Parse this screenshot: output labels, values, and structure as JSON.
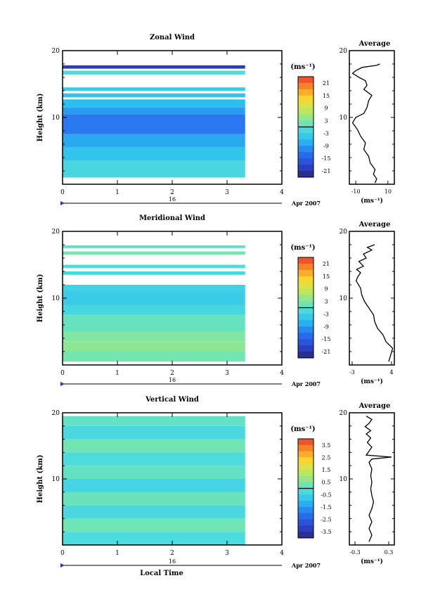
{
  "chart_data": [
    {
      "type": "heatmap",
      "title": "Zonal Wind",
      "ylabel": "Height (km)",
      "xlim": [
        0,
        4
      ],
      "ylim": [
        0,
        20
      ],
      "xticks": [
        "0",
        "1",
        "2",
        "3",
        "4"
      ],
      "yticks": [
        "10",
        "20"
      ],
      "date_day": "16",
      "date_label": "Apr 2007",
      "colorbar_unit": "(ms⁻¹)",
      "colorbar_ticks": [
        "21",
        "15",
        "9",
        "3",
        "-3",
        "-9",
        "-15",
        "-21"
      ],
      "colorbar_range": [
        -24,
        24
      ],
      "data_extent_x": [
        0,
        3.33
      ],
      "bands": [
        {
          "y0": 1.0,
          "y1": 3.5,
          "v": -2
        },
        {
          "y0": 3.5,
          "y1": 5.5,
          "v": -5
        },
        {
          "y0": 5.5,
          "y1": 7.5,
          "v": -8
        },
        {
          "y0": 7.5,
          "y1": 10.5,
          "v": -12
        },
        {
          "y0": 10.5,
          "y1": 11.5,
          "v": -9
        },
        {
          "y0": 11.5,
          "y1": 12.7,
          "v": -6
        },
        {
          "y0": 13.0,
          "y1": 13.6,
          "v": -5
        },
        {
          "y0": 14.0,
          "y1": 14.5,
          "v": -4
        },
        {
          "y0": 16.4,
          "y1": 17.0,
          "v": -1
        },
        {
          "y0": 17.3,
          "y1": 17.8,
          "v": -20
        }
      ],
      "avg": {
        "title": "Average",
        "xlim": [
          -14,
          14
        ],
        "xticks": [
          "-10",
          "10"
        ],
        "yticks": [
          "10",
          "20"
        ],
        "unit": "(ms⁻¹)",
        "profile": [
          [
            2,
            0.2
          ],
          [
            3,
            0.8
          ],
          [
            1,
            1.5
          ],
          [
            2,
            2.2
          ],
          [
            -1,
            3.2
          ],
          [
            -2,
            4.2
          ],
          [
            -5,
            5.2
          ],
          [
            -4,
            6.2
          ],
          [
            -7,
            7.2
          ],
          [
            -9,
            8.2
          ],
          [
            -12,
            9.2
          ],
          [
            -10,
            10.0
          ],
          [
            -5,
            10.6
          ],
          [
            -3,
            11.5
          ],
          [
            -2,
            12.5
          ],
          [
            0,
            13.3
          ],
          [
            -5,
            14.2
          ],
          [
            -3,
            14.8
          ],
          [
            -4,
            15.5
          ],
          [
            -8,
            16.0
          ],
          [
            -12,
            16.6
          ],
          [
            -10,
            17.0
          ],
          [
            -6,
            17.5
          ],
          [
            3,
            17.8
          ],
          [
            5,
            18.0
          ]
        ]
      }
    },
    {
      "type": "heatmap",
      "title": "Meridional Wind",
      "ylabel": "Height (km)",
      "xlim": [
        0,
        4
      ],
      "ylim": [
        0,
        20
      ],
      "xticks": [
        "0",
        "1",
        "2",
        "3",
        "4"
      ],
      "yticks": [
        "10",
        "20"
      ],
      "date_day": "16",
      "date_label": "Apr 2007",
      "colorbar_unit": "(ms⁻¹)",
      "colorbar_ticks": [
        "21",
        "15",
        "9",
        "3",
        "-3",
        "-9",
        "-15",
        "-21"
      ],
      "colorbar_range": [
        -24,
        24
      ],
      "data_extent_x": [
        0,
        3.33
      ],
      "bands": [
        {
          "y0": 0.5,
          "y1": 2.0,
          "v": 2
        },
        {
          "y0": 2.0,
          "y1": 3.5,
          "v": 4
        },
        {
          "y0": 3.5,
          "y1": 5.0,
          "v": 3
        },
        {
          "y0": 5.0,
          "y1": 7.5,
          "v": 1
        },
        {
          "y0": 7.5,
          "y1": 9.0,
          "v": -2
        },
        {
          "y0": 9.0,
          "y1": 11.0,
          "v": -4
        },
        {
          "y0": 11.0,
          "y1": 12.0,
          "v": -3
        },
        {
          "y0": 13.5,
          "y1": 14.0,
          "v": -2
        },
        {
          "y0": 14.5,
          "y1": 15.0,
          "v": -1
        },
        {
          "y0": 16.5,
          "y1": 17.0,
          "v": 2
        },
        {
          "y0": 17.5,
          "y1": 17.9,
          "v": 0
        }
      ],
      "avg": {
        "title": "Average",
        "xlim": [
          -3.5,
          4.5
        ],
        "xticks": [
          "-3",
          "4"
        ],
        "yticks": [
          "10",
          "20"
        ],
        "unit": "(ms⁻¹)",
        "profile": [
          [
            3.5,
            0.5
          ],
          [
            4.2,
            2.5
          ],
          [
            3.0,
            3.5
          ],
          [
            2.5,
            4.5
          ],
          [
            1.5,
            5.5
          ],
          [
            1.0,
            6.5
          ],
          [
            0.8,
            7.5
          ],
          [
            0.0,
            8.5
          ],
          [
            -0.8,
            9.5
          ],
          [
            -1.3,
            10.5
          ],
          [
            -1.5,
            11.5
          ],
          [
            -2.3,
            12.6
          ],
          [
            -2.0,
            13.2
          ],
          [
            -1.5,
            13.8
          ],
          [
            -2.2,
            14.3
          ],
          [
            -1.0,
            14.8
          ],
          [
            -1.8,
            15.5
          ],
          [
            -0.5,
            16.0
          ],
          [
            -1.0,
            16.6
          ],
          [
            0.5,
            17.2
          ],
          [
            -0.3,
            17.6
          ],
          [
            1.0,
            18.0
          ]
        ]
      }
    },
    {
      "type": "heatmap",
      "title": "Vertical Wind",
      "ylabel": "Height (km)",
      "xlabel": "Local Time",
      "xlim": [
        0,
        4
      ],
      "ylim": [
        0,
        20
      ],
      "xticks": [
        "0",
        "1",
        "2",
        "3",
        "4"
      ],
      "yticks": [
        "10",
        "20"
      ],
      "date_day": "16",
      "date_label": "Apr 2007",
      "colorbar_unit": "(ms⁻¹)",
      "colorbar_ticks": [
        "3.5",
        "2.5",
        "1.5",
        "0.5",
        "-0.5",
        "-1.5",
        "-2.5",
        "-3.5"
      ],
      "colorbar_range": [
        -4,
        4
      ],
      "data_extent_x": [
        0,
        3.33
      ],
      "bands": [
        {
          "y0": 0.0,
          "y1": 2.0,
          "v": -0.2
        },
        {
          "y0": 2.0,
          "y1": 4.0,
          "v": 0.3
        },
        {
          "y0": 4.0,
          "y1": 6.0,
          "v": -0.3
        },
        {
          "y0": 6.0,
          "y1": 8.0,
          "v": 0.2
        },
        {
          "y0": 8.0,
          "y1": 10.0,
          "v": -0.4
        },
        {
          "y0": 10.0,
          "y1": 12.0,
          "v": 0.1
        },
        {
          "y0": 12.0,
          "y1": 14.0,
          "v": -0.2
        },
        {
          "y0": 14.0,
          "y1": 16.0,
          "v": 0.3
        },
        {
          "y0": 16.0,
          "y1": 18.0,
          "v": -0.3
        },
        {
          "y0": 18.0,
          "y1": 19.5,
          "v": 0.1
        }
      ],
      "avg": {
        "title": "Average",
        "xlim": [
          -0.4,
          0.4
        ],
        "xticks": [
          "-0.3",
          "0.3"
        ],
        "yticks": [
          "10",
          "20"
        ],
        "unit": "(ms⁻¹)",
        "profile": [
          [
            -0.05,
            0.5
          ],
          [
            0.0,
            1.5
          ],
          [
            -0.05,
            2.5
          ],
          [
            0.0,
            3.5
          ],
          [
            -0.05,
            4.5
          ],
          [
            0.0,
            5.5
          ],
          [
            0.03,
            6.5
          ],
          [
            0.0,
            7.5
          ],
          [
            -0.02,
            8.5
          ],
          [
            0.0,
            9.5
          ],
          [
            -0.02,
            10.5
          ],
          [
            0.0,
            11.5
          ],
          [
            -0.05,
            12.5
          ],
          [
            0.0,
            13.0
          ],
          [
            0.35,
            13.3
          ],
          [
            -0.1,
            13.6
          ],
          [
            -0.05,
            14.2
          ],
          [
            0.0,
            14.8
          ],
          [
            -0.08,
            15.5
          ],
          [
            -0.02,
            16.2
          ],
          [
            -0.1,
            16.8
          ],
          [
            -0.02,
            17.3
          ],
          [
            -0.12,
            17.9
          ],
          [
            -0.05,
            18.4
          ],
          [
            0.0,
            19.0
          ],
          [
            -0.1,
            19.5
          ]
        ]
      }
    }
  ]
}
